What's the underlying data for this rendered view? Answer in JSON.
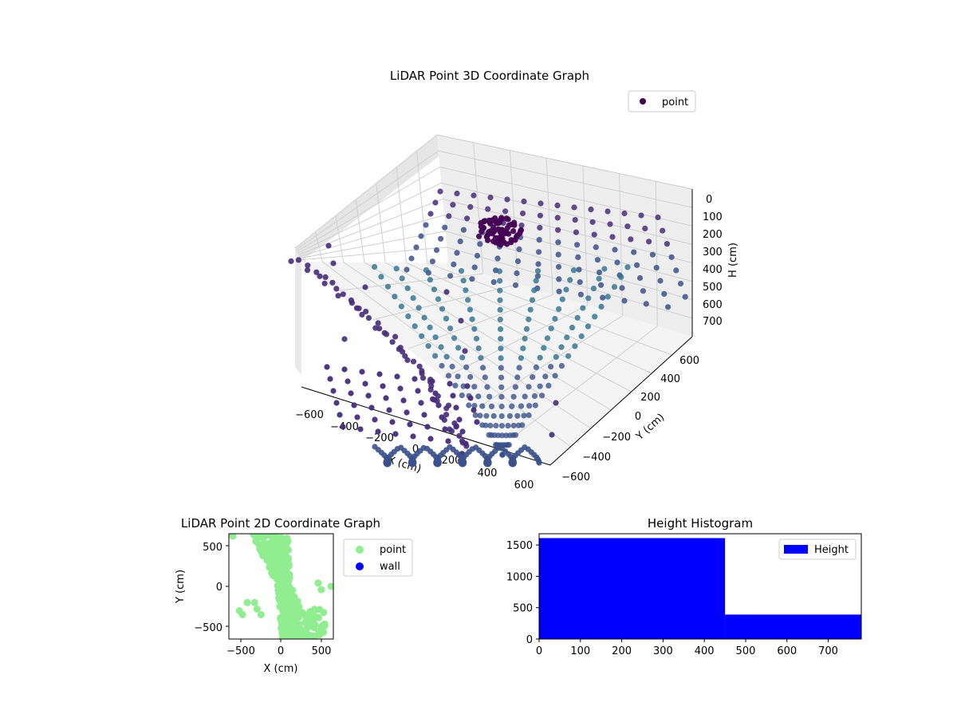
{
  "chart_data": [
    {
      "type": "scatter",
      "title": "LiDAR Point 3D Coordinate Graph",
      "xlabel": "X (cm)",
      "ylabel": "Y (cm)",
      "zlabel": "H (cm)",
      "xticks": [
        -600,
        -400,
        -200,
        0,
        200,
        400,
        600
      ],
      "yticks": [
        -600,
        -400,
        -200,
        0,
        200,
        400,
        600
      ],
      "zticks": [
        0,
        100,
        200,
        300,
        400,
        500,
        600,
        700
      ],
      "z_inverted": true,
      "grid": true,
      "legend": {
        "placement": "top-right",
        "entries": [
          {
            "label": "point",
            "color": "#440154"
          }
        ]
      },
      "colormap": "viridis",
      "series": [
        {
          "name": "point",
          "color": "#440154"
        }
      ]
    },
    {
      "type": "scatter",
      "title": "LiDAR Point 2D Coordinate Graph",
      "xlabel": "X (cm)",
      "ylabel": "Y (cm)",
      "xlim": [
        -650,
        650
      ],
      "ylim": [
        -650,
        650
      ],
      "xticks": [
        -500,
        0,
        500
      ],
      "yticks": [
        -500,
        0,
        500
      ],
      "legend": {
        "placement": "outside-right",
        "entries": [
          {
            "label": "point",
            "color": "#90ee90"
          },
          {
            "label": "wall",
            "color": "#0000ff"
          }
        ]
      },
      "series": [
        {
          "name": "point",
          "color": "#90ee90"
        },
        {
          "name": "wall",
          "color": "#0000ff"
        }
      ]
    },
    {
      "type": "bar",
      "title": "Height Histogram",
      "xlim": [
        0,
        780
      ],
      "ylim": [
        0,
        1680
      ],
      "xticks": [
        0,
        100,
        200,
        300,
        400,
        500,
        600,
        700
      ],
      "yticks": [
        0,
        500,
        1000,
        1500
      ],
      "bins": [
        {
          "start": 0,
          "end": 450,
          "count": 1610
        },
        {
          "start": 450,
          "end": 780,
          "count": 390
        }
      ],
      "legend": {
        "placement": "top-right",
        "entries": [
          {
            "label": "Height",
            "color": "#0000ff"
          }
        ]
      },
      "series": [
        {
          "name": "Height",
          "color": "#0000ff"
        }
      ]
    }
  ]
}
